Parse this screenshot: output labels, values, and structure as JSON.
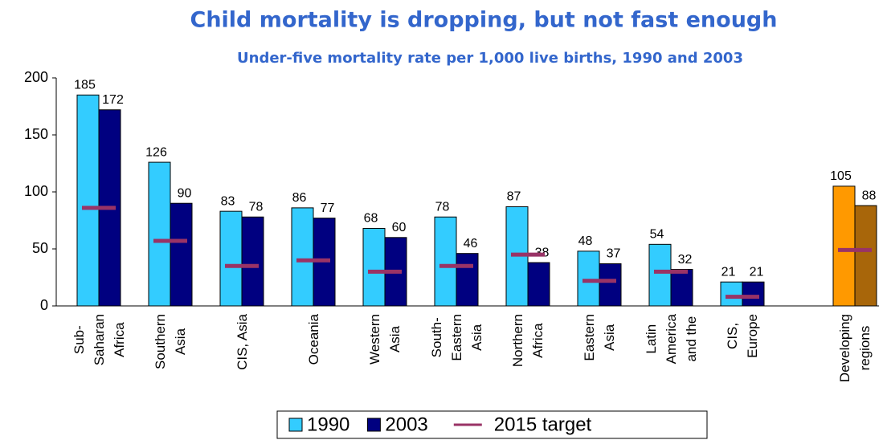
{
  "chart_data": {
    "type": "bar",
    "title": "Child mortality is dropping, but not fast enough",
    "subtitle": "Under-five mortality rate per 1,000 live births, 1990 and 2003",
    "categories": [
      "Sub-\nSaharan\nAfrica",
      "Southern\nAsia",
      "CIS, Asia",
      "Oceania",
      "Western\nAsia",
      "South-\nEastern\nAsia",
      "Northern\nAfrica",
      "Eastern\nAsia",
      "Latin\nAmerica\nand the",
      "CIS,\nEurope",
      "Developing\nregions"
    ],
    "series": [
      {
        "name": "1990",
        "color": "#33ccff",
        "colors": [
          "#33ccff",
          "#33ccff",
          "#33ccff",
          "#33ccff",
          "#33ccff",
          "#33ccff",
          "#33ccff",
          "#33ccff",
          "#33ccff",
          "#33ccff",
          "#ff9900"
        ],
        "values": [
          185,
          126,
          83,
          86,
          68,
          78,
          87,
          48,
          54,
          21,
          105
        ]
      },
      {
        "name": "2003",
        "color": "#000080",
        "colors": [
          "#000080",
          "#000080",
          "#000080",
          "#000080",
          "#000080",
          "#000080",
          "#000080",
          "#000080",
          "#000080",
          "#000080",
          "#a8660a"
        ],
        "values": [
          172,
          90,
          78,
          77,
          60,
          46,
          38,
          37,
          32,
          21,
          88
        ]
      },
      {
        "name": "2015 target",
        "color": "#993366",
        "mark": "dash",
        "values": [
          86,
          57,
          35,
          40,
          30,
          35,
          45,
          22,
          30,
          8,
          49
        ]
      }
    ],
    "ylim": [
      0,
      200
    ],
    "yticks": [
      0,
      50,
      100,
      150,
      200
    ],
    "grid": false,
    "legend": "bottom"
  }
}
